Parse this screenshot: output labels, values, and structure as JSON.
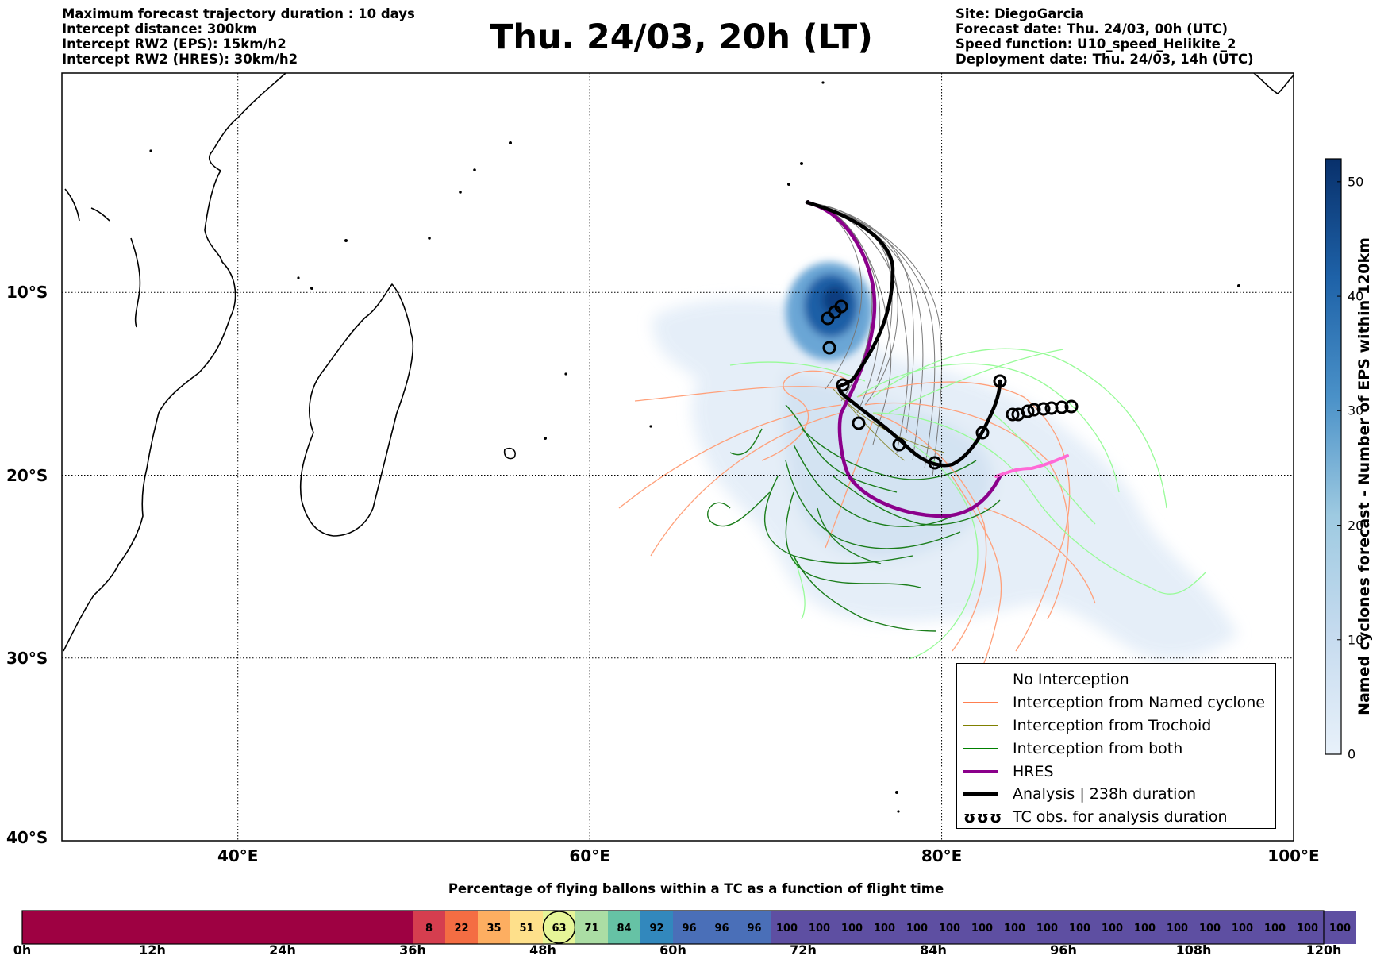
{
  "header_left": [
    "Maximum forecast trajectory duration : 10 days",
    "Intercept distance: 300km",
    "Intercept RW2 (EPS):  15km/h2",
    "Intercept RW2 (HRES): 30km/h2"
  ],
  "title": "Thu. 24/03, 20h (LT)",
  "header_right": [
    "Site: DiegoGarcia",
    "Forecast date: Thu. 24/03, 00h (UTC)",
    "Speed function: U10_speed_Helikite_2",
    "Deployment date: Thu. 24/03, 14h (UTC)"
  ],
  "map": {
    "lon_range": [
      30,
      100
    ],
    "lat_range": [
      -40,
      2
    ],
    "lat_labels": [
      {
        "text": "10°S",
        "lat": -10
      },
      {
        "text": "20°S",
        "lat": -20
      },
      {
        "text": "30°S",
        "lat": -30
      },
      {
        "text": "40°S",
        "lat": -40
      }
    ],
    "lon_labels": [
      {
        "text": "40°E",
        "lon": 40
      },
      {
        "text": "60°E",
        "lon": 60
      },
      {
        "text": "80°E",
        "lon": 80
      },
      {
        "text": "100°E",
        "lon": 100
      }
    ],
    "grid": "dotted"
  },
  "colorbar": {
    "label": "Named cyclones forecast - Number of EPS within 120km",
    "min": 0,
    "max": 52,
    "ticks": [
      "0",
      "10",
      "20",
      "30",
      "40",
      "50"
    ],
    "tick_values": [
      0,
      10,
      20,
      30,
      40,
      50
    ],
    "colors": [
      "#e1ecf7",
      "#08306b"
    ]
  },
  "legend": [
    {
      "label": "No Interception",
      "color": "#777777",
      "kind": "line-thin"
    },
    {
      "label": "Interception from Named cyclone",
      "color": "#ff7f50",
      "kind": "line-thin"
    },
    {
      "label": "Interception from Trochoid",
      "color": "#808000",
      "kind": "line-thin"
    },
    {
      "label": "Interception from both",
      "color": "#008000",
      "kind": "line-thin"
    },
    {
      "label": "HRES",
      "color": "#8b008b",
      "kind": "line-thick"
    },
    {
      "label": "Analysis | 238h duration",
      "color": "#000000",
      "kind": "line-thick"
    },
    {
      "label": "TC obs. for analysis duration",
      "color": "#000000",
      "kind": "loops",
      "glyph": "ʊʊʊ"
    }
  ],
  "timeline": {
    "title": "Percentage of flying ballons within a TC as a function of flight time",
    "max_hours": 120,
    "labels": [
      "0h",
      "12h",
      "24h",
      "36h",
      "48h",
      "60h",
      "72h",
      "84h",
      "96h",
      "108h",
      "120h"
    ],
    "label_hours": [
      0,
      12,
      24,
      36,
      48,
      60,
      72,
      84,
      96,
      108,
      120
    ],
    "segments": [
      {
        "hours": 36,
        "value": "",
        "color": "#9e0142"
      },
      {
        "hours": 3,
        "value": "8",
        "color": "#d53e4f"
      },
      {
        "hours": 3,
        "value": "22",
        "color": "#f46d43"
      },
      {
        "hours": 3,
        "value": "35",
        "color": "#fdae61"
      },
      {
        "hours": 3,
        "value": "51",
        "color": "#fee08b"
      },
      {
        "hours": 3,
        "value": "63",
        "color": "#e6f598",
        "circled": true
      },
      {
        "hours": 3,
        "value": "71",
        "color": "#abdda4"
      },
      {
        "hours": 3,
        "value": "84",
        "color": "#66c2a5"
      },
      {
        "hours": 3,
        "value": "92",
        "color": "#3288bd"
      },
      {
        "hours": 3,
        "value": "96",
        "color": "#4a6fb8"
      },
      {
        "hours": 3,
        "value": "96",
        "color": "#4a6fb8"
      },
      {
        "hours": 3,
        "value": "96",
        "color": "#4a6fb8"
      },
      {
        "hours": 3,
        "value": "100",
        "color": "#5e4fa2"
      },
      {
        "hours": 3,
        "value": "100",
        "color": "#5e4fa2"
      },
      {
        "hours": 3,
        "value": "100",
        "color": "#5e4fa2"
      },
      {
        "hours": 3,
        "value": "100",
        "color": "#5e4fa2"
      },
      {
        "hours": 3,
        "value": "100",
        "color": "#5e4fa2"
      },
      {
        "hours": 3,
        "value": "100",
        "color": "#5e4fa2"
      },
      {
        "hours": 3,
        "value": "100",
        "color": "#5e4fa2"
      },
      {
        "hours": 3,
        "value": "100",
        "color": "#5e4fa2"
      },
      {
        "hours": 3,
        "value": "100",
        "color": "#5e4fa2"
      },
      {
        "hours": 3,
        "value": "100",
        "color": "#5e4fa2"
      },
      {
        "hours": 3,
        "value": "100",
        "color": "#5e4fa2"
      },
      {
        "hours": 3,
        "value": "100",
        "color": "#5e4fa2"
      },
      {
        "hours": 3,
        "value": "100",
        "color": "#5e4fa2"
      },
      {
        "hours": 3,
        "value": "100",
        "color": "#5e4fa2"
      },
      {
        "hours": 3,
        "value": "100",
        "color": "#5e4fa2"
      },
      {
        "hours": 3,
        "value": "100",
        "color": "#5e4fa2"
      },
      {
        "hours": 3,
        "value": "100",
        "color": "#5e4fa2"
      },
      {
        "hours": 3,
        "value": "100",
        "color": "#5e4fa2"
      }
    ]
  }
}
